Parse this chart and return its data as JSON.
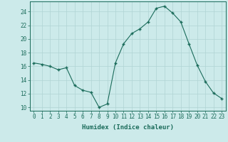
{
  "x": [
    0,
    1,
    2,
    3,
    4,
    5,
    6,
    7,
    8,
    9,
    10,
    11,
    12,
    13,
    14,
    15,
    16,
    17,
    18,
    19,
    20,
    21,
    22,
    23
  ],
  "y": [
    16.5,
    16.3,
    16.0,
    15.5,
    15.8,
    13.2,
    12.5,
    12.2,
    10.0,
    10.5,
    16.5,
    19.3,
    20.8,
    21.5,
    22.5,
    24.5,
    24.8,
    23.8,
    22.5,
    19.3,
    16.2,
    13.8,
    12.1,
    11.3
  ],
  "xlabel": "Humidex (Indice chaleur)",
  "line_color": "#1a6b5a",
  "marker_color": "#1a6b5a",
  "bg_color": "#cceaea",
  "grid_color": "#b0d4d4",
  "ylim": [
    9.5,
    25.5
  ],
  "xlim": [
    -0.5,
    23.5
  ],
  "yticks": [
    10,
    12,
    14,
    16,
    18,
    20,
    22,
    24
  ],
  "xticks": [
    0,
    1,
    2,
    3,
    4,
    5,
    6,
    7,
    8,
    9,
    10,
    11,
    12,
    13,
    14,
    15,
    16,
    17,
    18,
    19,
    20,
    21,
    22,
    23
  ],
  "tick_fontsize": 5.5,
  "xlabel_fontsize": 6.5
}
